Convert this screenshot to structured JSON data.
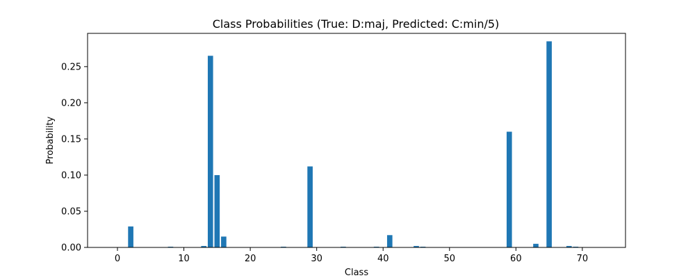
{
  "chart_data": {
    "type": "bar",
    "title": "Class Probabilities (True: D:maj, Predicted: C:min/5)",
    "xlabel": "Class",
    "ylabel": "Probability",
    "xlim": [
      -4.5,
      76.5
    ],
    "ylim": [
      0,
      0.296
    ],
    "xticks": [
      0,
      10,
      20,
      30,
      40,
      50,
      60,
      70
    ],
    "xtick_labels": [
      "0",
      "10",
      "20",
      "30",
      "40",
      "50",
      "60",
      "70"
    ],
    "yticks": [
      0.0,
      0.05,
      0.1,
      0.15,
      0.2,
      0.25
    ],
    "ytick_labels": [
      "0.00",
      "0.05",
      "0.10",
      "0.15",
      "0.20",
      "0.25"
    ],
    "bar_color": "#1f77b4",
    "grid": false,
    "legend": "none",
    "categories": [
      2,
      8,
      13,
      14,
      15,
      16,
      25,
      29,
      34,
      39,
      41,
      45,
      46,
      59,
      63,
      65,
      68,
      69
    ],
    "values": [
      0.029,
      0.001,
      0.002,
      0.265,
      0.1,
      0.015,
      0.001,
      0.112,
      0.001,
      0.001,
      0.017,
      0.002,
      0.001,
      0.16,
      0.005,
      0.285,
      0.002,
      0.001
    ]
  }
}
